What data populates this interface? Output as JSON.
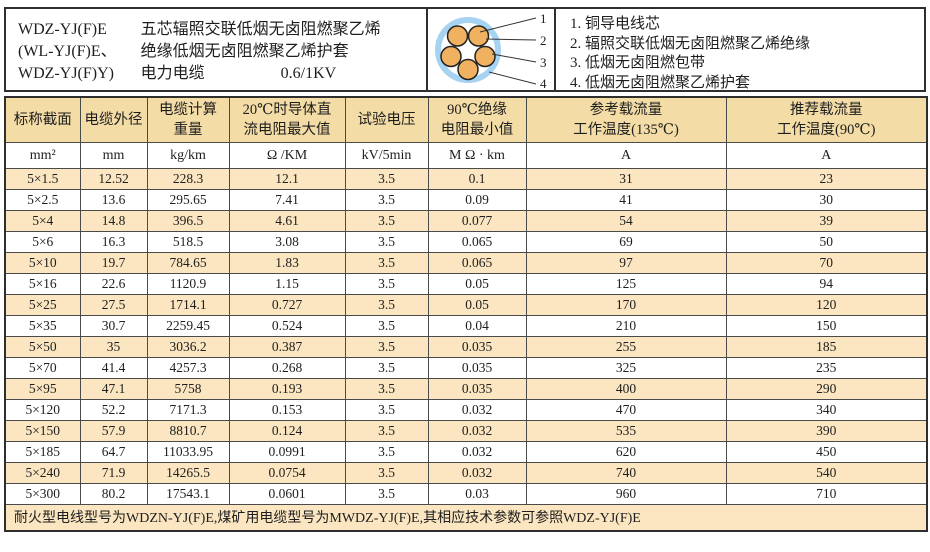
{
  "header": {
    "models": [
      "WDZ-YJ(F)E",
      "(WL-YJ(F)E、",
      "WDZ-YJ(F)Y)"
    ],
    "description_line1": "五芯辐照交联低烟无卤阻燃聚乙烯",
    "description_line2": "绝缘低烟无卤阻燃聚乙烯护套",
    "product_type": "电力电缆",
    "voltage": "0.6/1KV",
    "diagram_callouts": [
      "1",
      "2",
      "3",
      "4"
    ],
    "legend_items": [
      "1. 铜导电线芯",
      "2. 辐照交联低烟无卤阻燃聚乙烯绝缘",
      "3. 低烟无卤阻燃包带",
      "4. 低烟无卤阻燃聚乙烯护套"
    ]
  },
  "table": {
    "columns": [
      {
        "title": "标称截面",
        "title2": "",
        "unit": "mm²"
      },
      {
        "title": "电缆外径",
        "title2": "",
        "unit": "mm"
      },
      {
        "title": "电缆计算",
        "title2": "重量",
        "unit": "kg/km"
      },
      {
        "title": "20℃时导体直",
        "title2": "流电阻最大值",
        "unit": "Ω /KM"
      },
      {
        "title": "试验电压",
        "title2": "",
        "unit": "kV/5min"
      },
      {
        "title": "90℃绝缘",
        "title2": "电阻最小值",
        "unit": "M Ω · km"
      },
      {
        "title": "参考载流量",
        "title2": "工作温度(135℃)",
        "unit": "A"
      },
      {
        "title": "推荐载流量",
        "title2": "工作温度(90℃)",
        "unit": "A"
      }
    ],
    "rows": [
      [
        "5×1.5",
        "12.52",
        "228.3",
        "12.1",
        "3.5",
        "0.1",
        "31",
        "23"
      ],
      [
        "5×2.5",
        "13.6",
        "295.65",
        "7.41",
        "3.5",
        "0.09",
        "41",
        "30"
      ],
      [
        "5×4",
        "14.8",
        "396.5",
        "4.61",
        "3.5",
        "0.077",
        "54",
        "39"
      ],
      [
        "5×6",
        "16.3",
        "518.5",
        "3.08",
        "3.5",
        "0.065",
        "69",
        "50"
      ],
      [
        "5×10",
        "19.7",
        "784.65",
        "1.83",
        "3.5",
        "0.065",
        "97",
        "70"
      ],
      [
        "5×16",
        "22.6",
        "1120.9",
        "1.15",
        "3.5",
        "0.05",
        "125",
        "94"
      ],
      [
        "5×25",
        "27.5",
        "1714.1",
        "0.727",
        "3.5",
        "0.05",
        "170",
        "120"
      ],
      [
        "5×35",
        "30.7",
        "2259.45",
        "0.524",
        "3.5",
        "0.04",
        "210",
        "150"
      ],
      [
        "5×50",
        "35",
        "3036.2",
        "0.387",
        "3.5",
        "0.035",
        "255",
        "185"
      ],
      [
        "5×70",
        "41.4",
        "4257.3",
        "0.268",
        "3.5",
        "0.035",
        "325",
        "235"
      ],
      [
        "5×95",
        "47.1",
        "5758",
        "0.193",
        "3.5",
        "0.035",
        "400",
        "290"
      ],
      [
        "5×120",
        "52.2",
        "7171.3",
        "0.153",
        "3.5",
        "0.032",
        "470",
        "340"
      ],
      [
        "5×150",
        "57.9",
        "8810.7",
        "0.124",
        "3.5",
        "0.032",
        "535",
        "390"
      ],
      [
        "5×185",
        "64.7",
        "11033.95",
        "0.0991",
        "3.5",
        "0.032",
        "620",
        "450"
      ],
      [
        "5×240",
        "71.9",
        "14265.5",
        "0.0754",
        "3.5",
        "0.032",
        "740",
        "540"
      ],
      [
        "5×300",
        "80.2",
        "17543.1",
        "0.0601",
        "3.5",
        "0.03",
        "960",
        "710"
      ]
    ],
    "footer_note": "耐火型电线型号为WDZN-YJ(F)E,煤矿用电缆型号为MWDZ-YJ(F)E,其相应技术参数可参照WDZ-YJ(F)E"
  },
  "colors": {
    "header_fill": "#f4dca6",
    "stripe_fill": "#fbe6c1",
    "core_orange": "#f0b160",
    "sheath_blue": "#a6d3f1",
    "border_dark": "#2e2e2e",
    "grid_line": "#4a4a4a"
  }
}
